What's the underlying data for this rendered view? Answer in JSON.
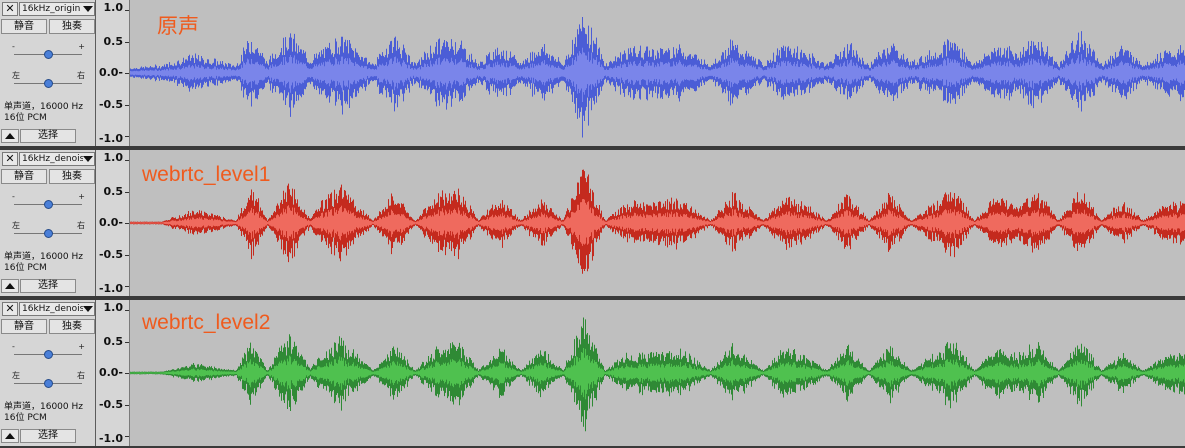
{
  "ui": {
    "close_glyph": "✕",
    "mute_label": "静音",
    "solo_label": "独奏",
    "gain_minus": "-",
    "gain_plus": "+",
    "pan_left": "左",
    "pan_right": "右",
    "collapse_icon": "triangle-up-icon",
    "select_label": "选择"
  },
  "tracks": [
    {
      "name": "16kHz_origin",
      "overlay_title": "原声",
      "info_line1": "单声道，16000 Hz",
      "info_line2": "16位 PCM",
      "color_wave": "#4b5dd6",
      "color_rms": "#7a85ea",
      "gain_value": 0.5,
      "pan_value": 0.5
    },
    {
      "name": "16kHz_denois",
      "overlay_title": "webrtc_level1",
      "info_line1": "单声道，16000 Hz",
      "info_line2": "16位 PCM",
      "color_wave": "#c42a1e",
      "color_rms": "#ef6a5e",
      "gain_value": 0.5,
      "pan_value": 0.5
    },
    {
      "name": "16kHz_denois",
      "overlay_title": "webrtc_level2",
      "info_line1": "单声道，16000 Hz",
      "info_line2": "16位 PCM",
      "color_wave": "#2f8a35",
      "color_rms": "#4fc14f",
      "gain_value": 0.5,
      "pan_value": 0.5
    }
  ],
  "ruler": {
    "labels": [
      "1.0",
      "0.5",
      "0.0-",
      "-0.5",
      "-1.0"
    ],
    "values": [
      1.0,
      0.5,
      0.0,
      -0.5,
      -1.0
    ]
  },
  "chart_data": {
    "type": "area",
    "ylim": [
      -1.0,
      1.0
    ],
    "xlabel": "",
    "ylabel": "",
    "series": [
      {
        "name": "原声",
        "x": [
          0.0,
          0.03,
          0.06,
          0.1,
          0.115,
          0.13,
          0.15,
          0.17,
          0.18,
          0.2,
          0.23,
          0.25,
          0.27,
          0.29,
          0.31,
          0.33,
          0.35,
          0.37,
          0.39,
          0.41,
          0.43,
          0.45,
          0.47,
          0.5,
          0.52,
          0.55,
          0.57,
          0.6,
          0.62,
          0.64,
          0.66,
          0.68,
          0.7,
          0.72,
          0.74,
          0.76,
          0.78,
          0.8,
          0.82,
          0.84,
          0.86,
          0.88,
          0.9,
          0.92,
          0.94,
          0.96,
          0.98,
          1.0
        ],
        "peak": [
          0.06,
          0.1,
          0.25,
          0.1,
          0.55,
          0.15,
          0.6,
          0.2,
          0.3,
          0.55,
          0.12,
          0.55,
          0.12,
          0.45,
          0.5,
          0.12,
          0.4,
          0.14,
          0.42,
          0.12,
          0.9,
          0.12,
          0.35,
          0.35,
          0.4,
          0.12,
          0.45,
          0.12,
          0.4,
          0.3,
          0.12,
          0.42,
          0.1,
          0.45,
          0.15,
          0.3,
          0.5,
          0.12,
          0.4,
          0.3,
          0.5,
          0.12,
          0.6,
          0.12,
          0.4,
          0.12,
          0.3,
          0.35
        ]
      },
      {
        "name": "webrtc_level1",
        "x": [
          0.0,
          0.03,
          0.06,
          0.1,
          0.115,
          0.13,
          0.15,
          0.17,
          0.18,
          0.2,
          0.23,
          0.25,
          0.27,
          0.29,
          0.31,
          0.33,
          0.35,
          0.37,
          0.39,
          0.41,
          0.43,
          0.45,
          0.47,
          0.5,
          0.52,
          0.55,
          0.57,
          0.6,
          0.62,
          0.64,
          0.66,
          0.68,
          0.7,
          0.72,
          0.74,
          0.76,
          0.78,
          0.8,
          0.82,
          0.84,
          0.86,
          0.88,
          0.9,
          0.92,
          0.94,
          0.96,
          0.98,
          1.0
        ],
        "peak": [
          0.0,
          0.0,
          0.18,
          0.02,
          0.5,
          0.02,
          0.58,
          0.05,
          0.3,
          0.5,
          0.02,
          0.45,
          0.02,
          0.38,
          0.5,
          0.02,
          0.38,
          0.02,
          0.35,
          0.02,
          0.8,
          0.02,
          0.28,
          0.3,
          0.35,
          0.02,
          0.42,
          0.02,
          0.38,
          0.25,
          0.02,
          0.4,
          0.02,
          0.4,
          0.02,
          0.25,
          0.5,
          0.02,
          0.38,
          0.25,
          0.45,
          0.02,
          0.5,
          0.02,
          0.3,
          0.02,
          0.25,
          0.3
        ]
      },
      {
        "name": "webrtc_level2",
        "x": [
          0.0,
          0.03,
          0.06,
          0.1,
          0.115,
          0.13,
          0.15,
          0.17,
          0.18,
          0.2,
          0.23,
          0.25,
          0.27,
          0.29,
          0.31,
          0.33,
          0.35,
          0.37,
          0.39,
          0.41,
          0.43,
          0.45,
          0.47,
          0.5,
          0.52,
          0.55,
          0.57,
          0.6,
          0.62,
          0.64,
          0.66,
          0.68,
          0.7,
          0.72,
          0.74,
          0.76,
          0.78,
          0.8,
          0.82,
          0.84,
          0.86,
          0.88,
          0.9,
          0.92,
          0.94,
          0.96,
          0.98,
          1.0
        ],
        "peak": [
          0.0,
          0.0,
          0.12,
          0.02,
          0.45,
          0.02,
          0.55,
          0.05,
          0.25,
          0.48,
          0.02,
          0.42,
          0.02,
          0.36,
          0.48,
          0.02,
          0.36,
          0.02,
          0.34,
          0.02,
          0.78,
          0.02,
          0.26,
          0.28,
          0.34,
          0.02,
          0.4,
          0.02,
          0.36,
          0.24,
          0.02,
          0.38,
          0.02,
          0.38,
          0.02,
          0.24,
          0.48,
          0.02,
          0.36,
          0.24,
          0.44,
          0.02,
          0.48,
          0.02,
          0.28,
          0.02,
          0.24,
          0.28
        ]
      }
    ]
  }
}
